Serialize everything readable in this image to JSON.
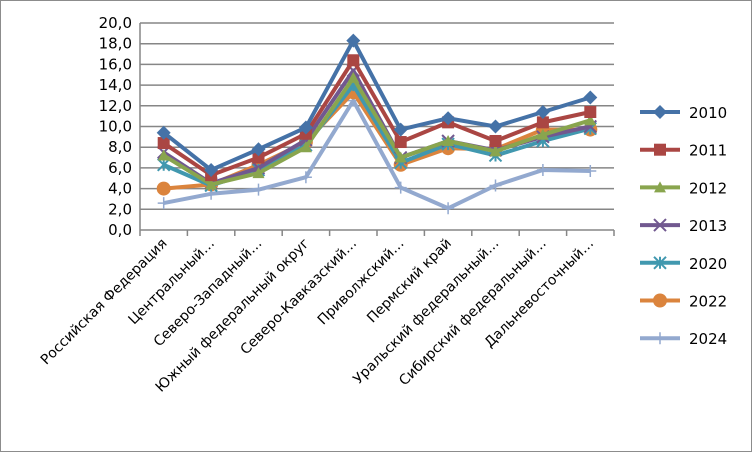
{
  "chart_data": {
    "type": "line",
    "title": "",
    "xlabel": "",
    "ylabel": "",
    "ylim": [
      0,
      20
    ],
    "ytick_step": 2,
    "ytick_labels": [
      "0,0",
      "2,0",
      "4,0",
      "6,0",
      "8,0",
      "10,0",
      "12,0",
      "14,0",
      "16,0",
      "18,0",
      "20,0"
    ],
    "grid": "horizontal",
    "legend_position": "right",
    "categories": [
      "Российская Федерация",
      "Центральный…",
      "Северо-Западный…",
      "Южный федеральный округ",
      "Северо-Кавказский…",
      "Приволжский…",
      "Пермский край",
      "Уральский федеральный…",
      "Сибирский федеральный…",
      "Дальневосточный…"
    ],
    "series": [
      {
        "name": "2010",
        "color": "#4572A7",
        "marker": "diamond",
        "values": [
          9.4,
          5.8,
          7.8,
          9.9,
          18.3,
          9.7,
          10.8,
          10.0,
          11.4,
          12.8
        ]
      },
      {
        "name": "2011",
        "color": "#AA4643",
        "marker": "square",
        "values": [
          8.4,
          5.3,
          7.0,
          9.3,
          16.4,
          8.5,
          10.4,
          8.6,
          10.4,
          11.4
        ]
      },
      {
        "name": "2012",
        "color": "#89A54E",
        "marker": "triangle",
        "values": [
          7.2,
          4.4,
          5.5,
          8.0,
          14.7,
          7.0,
          8.6,
          7.6,
          9.2,
          10.6
        ]
      },
      {
        "name": "2013",
        "color": "#71588F",
        "marker": "x",
        "values": [
          7.5,
          4.5,
          6.0,
          8.7,
          15.4,
          7.0,
          8.6,
          7.7,
          9.0,
          10.0
        ]
      },
      {
        "name": "2020",
        "color": "#4198AF",
        "marker": "star",
        "values": [
          6.3,
          4.3,
          5.8,
          8.2,
          14.0,
          6.5,
          8.3,
          7.2,
          8.6,
          9.8
        ]
      },
      {
        "name": "2022",
        "color": "#DB843D",
        "marker": "circle",
        "values": [
          4.0,
          4.4,
          6.3,
          8.5,
          13.3,
          6.3,
          7.9,
          7.8,
          9.7,
          9.7
        ]
      },
      {
        "name": "2024",
        "color": "#93A9CF",
        "marker": "plus",
        "values": [
          2.6,
          3.5,
          3.9,
          5.1,
          12.5,
          4.1,
          2.1,
          4.3,
          5.8,
          5.7
        ]
      }
    ]
  }
}
